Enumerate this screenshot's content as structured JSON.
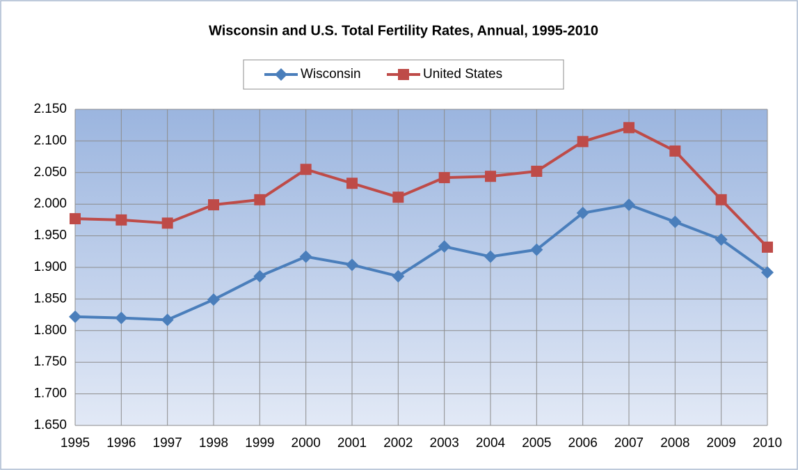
{
  "chart_data": {
    "type": "line",
    "title": "Wisconsin and U.S. Total Fertility Rates, Annual, 1995-2010",
    "categories": [
      "1995",
      "1996",
      "1997",
      "1998",
      "1999",
      "2000",
      "2001",
      "2002",
      "2003",
      "2004",
      "2005",
      "2006",
      "2007",
      "2008",
      "2009",
      "2010"
    ],
    "series": [
      {
        "name": "Wisconsin",
        "color": "#4a7ebb",
        "marker": "diamond",
        "values": [
          1.822,
          1.82,
          1.817,
          1.849,
          1.886,
          1.917,
          1.904,
          1.886,
          1.933,
          1.917,
          1.928,
          1.986,
          1.999,
          1.972,
          1.944,
          1.892
        ]
      },
      {
        "name": "United States",
        "color": "#be4b48",
        "marker": "square",
        "values": [
          1.977,
          1.975,
          1.97,
          1.999,
          2.007,
          2.055,
          2.033,
          2.011,
          2.042,
          2.044,
          2.052,
          2.099,
          2.121,
          2.084,
          2.007,
          1.932
        ]
      }
    ],
    "ylim": [
      1.65,
      2.15
    ],
    "yticks": [
      {
        "value": 1.65,
        "label": "1.650"
      },
      {
        "value": 1.7,
        "label": "1.700"
      },
      {
        "value": 1.75,
        "label": "1.750"
      },
      {
        "value": 1.8,
        "label": "1.800"
      },
      {
        "value": 1.85,
        "label": "1.850"
      },
      {
        "value": 1.9,
        "label": "1.900"
      },
      {
        "value": 1.95,
        "label": "1.950"
      },
      {
        "value": 2.0,
        "label": "2.000"
      },
      {
        "value": 2.05,
        "label": "2.050"
      },
      {
        "value": 2.1,
        "label": "2.100"
      },
      {
        "value": 2.15,
        "label": "2.150"
      }
    ],
    "grid": true,
    "legend": "top"
  }
}
